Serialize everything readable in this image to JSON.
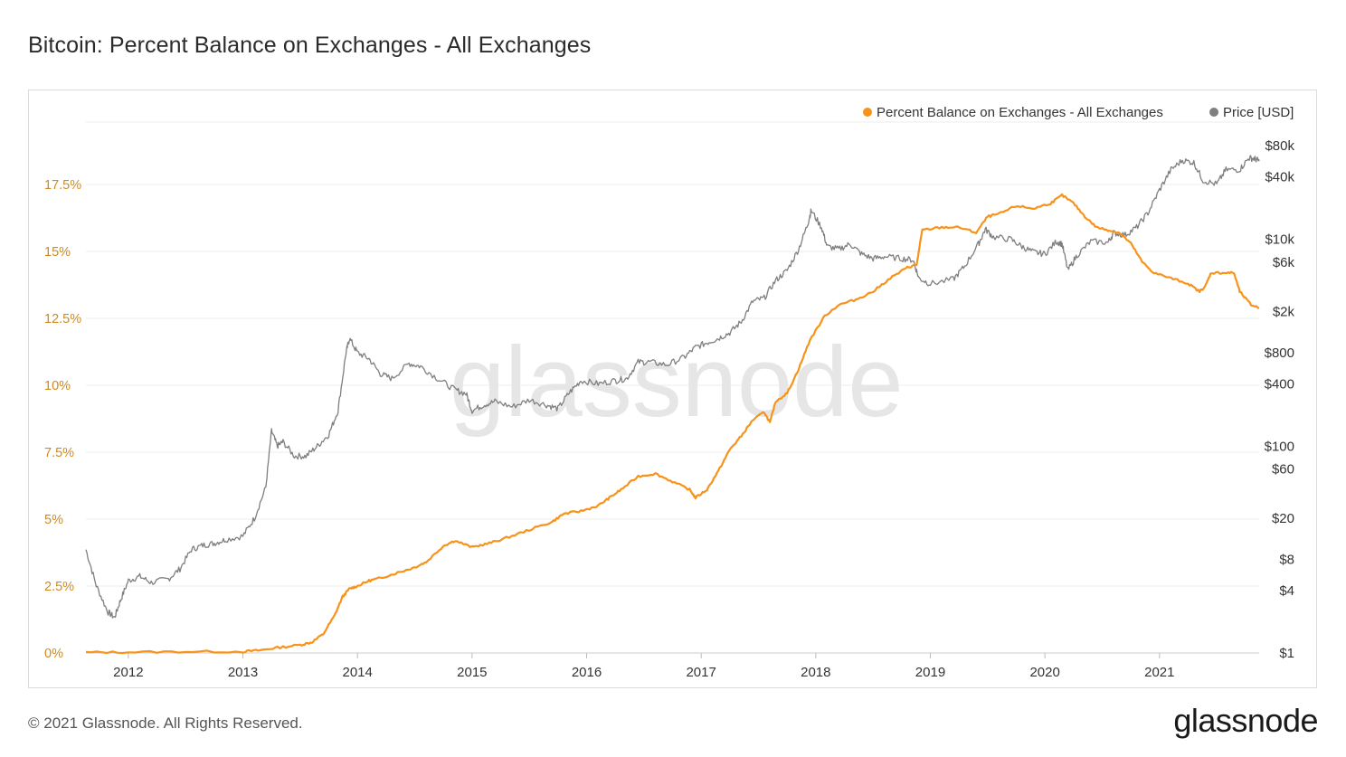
{
  "header": {
    "title": "Bitcoin: Percent Balance on Exchanges - All Exchanges"
  },
  "footer": {
    "copyright": "© 2021 Glassnode. All Rights Reserved.",
    "logo_text": "glassnode"
  },
  "watermark": "glassnode",
  "colors": {
    "balance": "#f7931a",
    "price": "#7f7f7f",
    "grid": "#ececec",
    "left_axis_text": "#d08a1e"
  },
  "chart_data": {
    "type": "line",
    "title": "Bitcoin: Percent Balance on Exchanges - All Exchanges",
    "legend_position": "top-right",
    "grid": true,
    "x_axis": {
      "ticks": [
        "2012",
        "2013",
        "2014",
        "2015",
        "2016",
        "2017",
        "2018",
        "2019",
        "2020",
        "2021"
      ],
      "range": [
        2011.63,
        2021.87
      ]
    },
    "y_left": {
      "unit": "%",
      "range": [
        0,
        20
      ],
      "ticks": [
        {
          "value": 0,
          "label": "0%"
        },
        {
          "value": 2.5,
          "label": "2.5%"
        },
        {
          "value": 5,
          "label": "5%"
        },
        {
          "value": 7.5,
          "label": "7.5%"
        },
        {
          "value": 10,
          "label": "10%"
        },
        {
          "value": 12.5,
          "label": "12.5%"
        },
        {
          "value": 15,
          "label": "15%"
        },
        {
          "value": 17.5,
          "label": "17.5%"
        }
      ]
    },
    "y_right": {
      "scale": "log",
      "range": [
        1,
        150000
      ],
      "ticks": [
        {
          "value": 1,
          "label": "$1"
        },
        {
          "value": 4,
          "label": "$4"
        },
        {
          "value": 8,
          "label": "$8"
        },
        {
          "value": 20,
          "label": "$20"
        },
        {
          "value": 60,
          "label": "$60"
        },
        {
          "value": 100,
          "label": "$100"
        },
        {
          "value": 400,
          "label": "$400"
        },
        {
          "value": 800,
          "label": "$800"
        },
        {
          "value": 2000,
          "label": "$2k"
        },
        {
          "value": 6000,
          "label": "$6k"
        },
        {
          "value": 10000,
          "label": "$10k"
        },
        {
          "value": 40000,
          "label": "$40k"
        },
        {
          "value": 80000,
          "label": "$80k"
        }
      ]
    },
    "series": [
      {
        "name": "Percent Balance on Exchanges - All Exchanges",
        "axis": "left",
        "color": "#f7931a",
        "points": [
          [
            2011.63,
            0.02
          ],
          [
            2012.0,
            0.03
          ],
          [
            2012.5,
            0.05
          ],
          [
            2013.0,
            0.05
          ],
          [
            2013.15,
            0.1
          ],
          [
            2013.3,
            0.2
          ],
          [
            2013.5,
            0.3
          ],
          [
            2013.6,
            0.4
          ],
          [
            2013.7,
            0.7
          ],
          [
            2013.8,
            1.4
          ],
          [
            2013.87,
            2.1
          ],
          [
            2013.93,
            2.4
          ],
          [
            2014.0,
            2.5
          ],
          [
            2014.1,
            2.7
          ],
          [
            2014.2,
            2.8
          ],
          [
            2014.35,
            3.0
          ],
          [
            2014.5,
            3.2
          ],
          [
            2014.6,
            3.4
          ],
          [
            2014.75,
            4.0
          ],
          [
            2014.85,
            4.2
          ],
          [
            2015.0,
            3.95
          ],
          [
            2015.15,
            4.1
          ],
          [
            2015.3,
            4.3
          ],
          [
            2015.5,
            4.6
          ],
          [
            2015.7,
            4.9
          ],
          [
            2015.8,
            5.2
          ],
          [
            2015.95,
            5.3
          ],
          [
            2016.1,
            5.5
          ],
          [
            2016.2,
            5.8
          ],
          [
            2016.3,
            6.1
          ],
          [
            2016.45,
            6.6
          ],
          [
            2016.6,
            6.7
          ],
          [
            2016.75,
            6.4
          ],
          [
            2016.9,
            6.1
          ],
          [
            2016.95,
            5.8
          ],
          [
            2017.05,
            6.1
          ],
          [
            2017.15,
            6.8
          ],
          [
            2017.25,
            7.6
          ],
          [
            2017.35,
            8.1
          ],
          [
            2017.45,
            8.7
          ],
          [
            2017.55,
            9.0
          ],
          [
            2017.6,
            8.6
          ],
          [
            2017.65,
            9.4
          ],
          [
            2017.75,
            9.7
          ],
          [
            2017.85,
            10.6
          ],
          [
            2017.95,
            11.7
          ],
          [
            2018.08,
            12.6
          ],
          [
            2018.2,
            13.0
          ],
          [
            2018.35,
            13.2
          ],
          [
            2018.5,
            13.5
          ],
          [
            2018.65,
            14.0
          ],
          [
            2018.8,
            14.4
          ],
          [
            2018.88,
            14.5
          ],
          [
            2018.93,
            15.8
          ],
          [
            2019.1,
            15.9
          ],
          [
            2019.25,
            15.9
          ],
          [
            2019.4,
            15.7
          ],
          [
            2019.5,
            16.3
          ],
          [
            2019.6,
            16.4
          ],
          [
            2019.75,
            16.7
          ],
          [
            2019.9,
            16.6
          ],
          [
            2020.05,
            16.8
          ],
          [
            2020.15,
            17.1
          ],
          [
            2020.25,
            16.8
          ],
          [
            2020.35,
            16.3
          ],
          [
            2020.45,
            15.9
          ],
          [
            2020.55,
            15.8
          ],
          [
            2020.65,
            15.7
          ],
          [
            2020.75,
            15.3
          ],
          [
            2020.85,
            14.6
          ],
          [
            2020.95,
            14.2
          ],
          [
            2021.1,
            14.0
          ],
          [
            2021.25,
            13.8
          ],
          [
            2021.35,
            13.5
          ],
          [
            2021.4,
            13.7
          ],
          [
            2021.45,
            14.2
          ],
          [
            2021.55,
            14.2
          ],
          [
            2021.65,
            14.2
          ],
          [
            2021.7,
            13.5
          ],
          [
            2021.8,
            13.0
          ],
          [
            2021.87,
            12.9
          ]
        ]
      },
      {
        "name": "Price [USD]",
        "axis": "right",
        "color": "#7f7f7f",
        "points": [
          [
            2011.63,
            10
          ],
          [
            2011.72,
            4.5
          ],
          [
            2011.82,
            2.5
          ],
          [
            2011.88,
            2.2
          ],
          [
            2011.93,
            3.2
          ],
          [
            2012.0,
            5
          ],
          [
            2012.1,
            5.5
          ],
          [
            2012.2,
            4.8
          ],
          [
            2012.35,
            5.2
          ],
          [
            2012.45,
            6.5
          ],
          [
            2012.55,
            10
          ],
          [
            2012.65,
            11
          ],
          [
            2012.75,
            11.5
          ],
          [
            2012.85,
            12.5
          ],
          [
            2013.0,
            13.5
          ],
          [
            2013.1,
            20
          ],
          [
            2013.2,
            40
          ],
          [
            2013.25,
            140
          ],
          [
            2013.3,
            100
          ],
          [
            2013.35,
            110
          ],
          [
            2013.45,
            80
          ],
          [
            2013.55,
            80
          ],
          [
            2013.65,
            100
          ],
          [
            2013.75,
            130
          ],
          [
            2013.83,
            220
          ],
          [
            2013.9,
            800
          ],
          [
            2013.93,
            1100
          ],
          [
            2014.0,
            800
          ],
          [
            2014.1,
            700
          ],
          [
            2014.2,
            500
          ],
          [
            2014.3,
            450
          ],
          [
            2014.45,
            630
          ],
          [
            2014.55,
            590
          ],
          [
            2014.7,
            450
          ],
          [
            2014.85,
            350
          ],
          [
            2014.95,
            320
          ],
          [
            2015.0,
            220
          ],
          [
            2015.1,
            250
          ],
          [
            2015.2,
            270
          ],
          [
            2015.35,
            240
          ],
          [
            2015.5,
            280
          ],
          [
            2015.65,
            250
          ],
          [
            2015.75,
            230
          ],
          [
            2015.85,
            330
          ],
          [
            2015.95,
            430
          ],
          [
            2016.1,
            400
          ],
          [
            2016.25,
            430
          ],
          [
            2016.35,
            450
          ],
          [
            2016.45,
            650
          ],
          [
            2016.55,
            650
          ],
          [
            2016.7,
            610
          ],
          [
            2016.85,
            720
          ],
          [
            2016.95,
            900
          ],
          [
            2017.05,
            1000
          ],
          [
            2017.15,
            1100
          ],
          [
            2017.25,
            1250
          ],
          [
            2017.35,
            1600
          ],
          [
            2017.45,
            2500
          ],
          [
            2017.55,
            2700
          ],
          [
            2017.65,
            4000
          ],
          [
            2017.75,
            5000
          ],
          [
            2017.85,
            8000
          ],
          [
            2017.93,
            14000
          ],
          [
            2017.96,
            19000
          ],
          [
            2018.05,
            13000
          ],
          [
            2018.1,
            8500
          ],
          [
            2018.2,
            8000
          ],
          [
            2018.3,
            9000
          ],
          [
            2018.4,
            7200
          ],
          [
            2018.5,
            6500
          ],
          [
            2018.6,
            6800
          ],
          [
            2018.75,
            6500
          ],
          [
            2018.85,
            6300
          ],
          [
            2018.9,
            4200
          ],
          [
            2019.0,
            3700
          ],
          [
            2019.2,
            4100
          ],
          [
            2019.3,
            5500
          ],
          [
            2019.42,
            9000
          ],
          [
            2019.48,
            12500
          ],
          [
            2019.55,
            10500
          ],
          [
            2019.7,
            10000
          ],
          [
            2019.8,
            8500
          ],
          [
            2019.9,
            7500
          ],
          [
            2020.0,
            7200
          ],
          [
            2020.1,
            9500
          ],
          [
            2020.15,
            9000
          ],
          [
            2020.2,
            5000
          ],
          [
            2020.28,
            7000
          ],
          [
            2020.4,
            9500
          ],
          [
            2020.55,
            9300
          ],
          [
            2020.6,
            11500
          ],
          [
            2020.7,
            11000
          ],
          [
            2020.8,
            13000
          ],
          [
            2020.9,
            18000
          ],
          [
            2021.0,
            30000
          ],
          [
            2021.1,
            47000
          ],
          [
            2021.2,
            58000
          ],
          [
            2021.3,
            55000
          ],
          [
            2021.38,
            37000
          ],
          [
            2021.5,
            34000
          ],
          [
            2021.58,
            47000
          ],
          [
            2021.7,
            47000
          ],
          [
            2021.78,
            61000
          ],
          [
            2021.83,
            60000
          ],
          [
            2021.87,
            57000
          ]
        ]
      }
    ]
  }
}
